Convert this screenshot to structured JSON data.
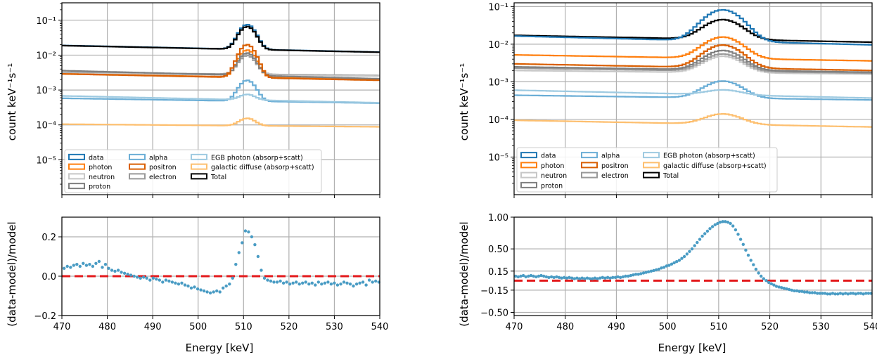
{
  "colors": {
    "data": "#1f77b4",
    "photon": "#ff7f0e",
    "neutron": "#c7c7c7",
    "proton": "#7f7f7f",
    "alpha": "#6baed6",
    "positron": "#d95f02",
    "electron": "#999999",
    "egb": "#9ecae1",
    "galactic": "#fdbf6f",
    "total": "#000000",
    "resid_points": "#4a9cc4",
    "zero_line": "#e31a1c",
    "grid": "#b0b0b0"
  },
  "legend": {
    "items": [
      {
        "key": "data",
        "label": "data"
      },
      {
        "key": "photon",
        "label": "photon"
      },
      {
        "key": "neutron",
        "label": "neutron"
      },
      {
        "key": "proton",
        "label": "proton"
      },
      {
        "key": "alpha",
        "label": "alpha"
      },
      {
        "key": "positron",
        "label": "positron"
      },
      {
        "key": "electron",
        "label": "electron"
      },
      {
        "key": "egb",
        "label": "EGB photon (absorp+scatt)"
      },
      {
        "key": "galactic",
        "label": "galactic diffuse (absorp+scatt)"
      },
      {
        "key": "total",
        "label": "Total"
      }
    ]
  },
  "chart_data": [
    {
      "type": "line",
      "panel": "left-spectrum",
      "ylabel": "count keV⁻¹s⁻¹",
      "yscale": "log",
      "xlim": [
        470,
        540
      ],
      "ylim_exp": [
        -6,
        -0.5
      ],
      "ytick_exps": [
        -5,
        -4,
        -3,
        -2,
        -1
      ],
      "ytick_labels": [
        "10⁻⁵",
        "10⁻⁴",
        "10⁻³",
        "10⁻²",
        "10⁻¹"
      ],
      "line_center_keV": 510.8,
      "line_width_keV": 1.6,
      "series": [
        {
          "key": "galactic",
          "baseline_470": 0.000105,
          "baseline_540": 8.8e-05,
          "peak": 0.000155
        },
        {
          "key": "alpha",
          "baseline_470": 0.00058,
          "baseline_540": 0.00042,
          "peak": 0.0019
        },
        {
          "key": "egb",
          "baseline_470": 0.00068,
          "baseline_540": 0.00043,
          "peak": 0.00075
        },
        {
          "key": "electron",
          "baseline_470": 0.0032,
          "baseline_540": 0.0026,
          "peak": 0.0098
        },
        {
          "key": "neutron",
          "baseline_470": 0.003,
          "baseline_540": 0.0025,
          "peak": 0.011
        },
        {
          "key": "photon",
          "baseline_470": 0.0029,
          "baseline_540": 0.002,
          "peak": 0.014
        },
        {
          "key": "proton",
          "baseline_470": 0.0036,
          "baseline_540": 0.0021,
          "peak": 0.0115
        },
        {
          "key": "positron",
          "baseline_470": 0.0029,
          "baseline_540": 0.0019,
          "peak": 0.02
        },
        {
          "key": "data",
          "baseline_470": 0.019,
          "baseline_540": 0.0122,
          "peak": 0.075
        },
        {
          "key": "total",
          "baseline_470": 0.0188,
          "baseline_540": 0.0121,
          "peak": 0.066
        }
      ]
    },
    {
      "type": "line",
      "panel": "right-spectrum",
      "ylabel": "count keV⁻¹s⁻¹",
      "yscale": "log",
      "xlim": [
        470,
        540
      ],
      "ylim_exp": [
        -6,
        -0.9
      ],
      "ytick_exps": [
        -5,
        -4,
        -3,
        -2,
        -1
      ],
      "ytick_labels": [
        "10⁻⁵",
        "10⁻⁴",
        "10⁻³",
        "10⁻²",
        "10⁻¹"
      ],
      "line_center_keV": 510.8,
      "line_width_keV": 3.2,
      "series": [
        {
          "key": "galactic",
          "baseline_470": 9.5e-05,
          "baseline_540": 6.3e-05,
          "peak": 0.00014
        },
        {
          "key": "alpha",
          "baseline_470": 0.00044,
          "baseline_540": 0.00033,
          "peak": 0.00105
        },
        {
          "key": "egb",
          "baseline_470": 0.0006,
          "baseline_540": 0.00037,
          "peak": 0.00061
        },
        {
          "key": "neutron",
          "baseline_470": 0.002,
          "baseline_540": 0.0016,
          "peak": 0.0048
        },
        {
          "key": "electron",
          "baseline_470": 0.0023,
          "baseline_540": 0.0017,
          "peak": 0.0055
        },
        {
          "key": "proton",
          "baseline_470": 0.0025,
          "baseline_540": 0.0018,
          "peak": 0.0068
        },
        {
          "key": "positron",
          "baseline_470": 0.003,
          "baseline_540": 0.002,
          "peak": 0.0095
        },
        {
          "key": "photon",
          "baseline_470": 0.0052,
          "baseline_540": 0.0036,
          "peak": 0.0155
        },
        {
          "key": "total",
          "baseline_470": 0.0172,
          "baseline_540": 0.0113,
          "peak": 0.045
        },
        {
          "key": "data",
          "baseline_470": 0.0165,
          "baseline_540": 0.0096,
          "peak": 0.082
        }
      ]
    },
    {
      "type": "scatter",
      "panel": "left-residual",
      "xlabel": "Energy [keV]",
      "ylabel": "(data-model)/model",
      "xlim": [
        470,
        540
      ],
      "ylim": [
        -0.2,
        0.3
      ],
      "yticks": [
        -0.2,
        0.0,
        0.2
      ],
      "ytick_labels": [
        "−0.2",
        "0.0",
        "0.2"
      ],
      "xticks": [
        470,
        480,
        490,
        500,
        510,
        520,
        530,
        540
      ],
      "points": [
        [
          470.5,
          0.04
        ],
        [
          471.2,
          0.05
        ],
        [
          471.9,
          0.045
        ],
        [
          472.6,
          0.055
        ],
        [
          473.3,
          0.06
        ],
        [
          474.0,
          0.05
        ],
        [
          474.7,
          0.065
        ],
        [
          475.4,
          0.055
        ],
        [
          476.1,
          0.06
        ],
        [
          476.8,
          0.05
        ],
        [
          477.5,
          0.065
        ],
        [
          478.2,
          0.075
        ],
        [
          478.9,
          0.045
        ],
        [
          479.6,
          0.06
        ],
        [
          480.3,
          0.04
        ],
        [
          481.0,
          0.03
        ],
        [
          481.7,
          0.025
        ],
        [
          482.4,
          0.03
        ],
        [
          483.1,
          0.02
        ],
        [
          483.8,
          0.015
        ],
        [
          484.5,
          0.01
        ],
        [
          485.2,
          0.005
        ],
        [
          485.9,
          0.0
        ],
        [
          486.6,
          -0.005
        ],
        [
          487.3,
          -0.01
        ],
        [
          488.0,
          -0.005
        ],
        [
          488.7,
          -0.01
        ],
        [
          489.4,
          -0.02
        ],
        [
          490.1,
          -0.01
        ],
        [
          490.8,
          -0.015
        ],
        [
          491.5,
          -0.02
        ],
        [
          492.2,
          -0.03
        ],
        [
          492.9,
          -0.02
        ],
        [
          493.6,
          -0.025
        ],
        [
          494.3,
          -0.03
        ],
        [
          495.0,
          -0.035
        ],
        [
          495.7,
          -0.04
        ],
        [
          496.4,
          -0.035
        ],
        [
          497.1,
          -0.045
        ],
        [
          497.8,
          -0.05
        ],
        [
          498.5,
          -0.06
        ],
        [
          499.2,
          -0.055
        ],
        [
          499.9,
          -0.065
        ],
        [
          500.6,
          -0.07
        ],
        [
          501.3,
          -0.075
        ],
        [
          502.0,
          -0.08
        ],
        [
          502.7,
          -0.085
        ],
        [
          503.4,
          -0.08
        ],
        [
          504.1,
          -0.075
        ],
        [
          504.8,
          -0.08
        ],
        [
          505.5,
          -0.06
        ],
        [
          506.2,
          -0.05
        ],
        [
          506.9,
          -0.04
        ],
        [
          507.6,
          -0.01
        ],
        [
          508.3,
          0.06
        ],
        [
          509.0,
          0.12
        ],
        [
          509.7,
          0.17
        ],
        [
          510.4,
          0.23
        ],
        [
          511.1,
          0.225
        ],
        [
          511.8,
          0.2
        ],
        [
          512.5,
          0.16
        ],
        [
          513.2,
          0.1
        ],
        [
          513.9,
          0.03
        ],
        [
          514.6,
          -0.01
        ],
        [
          515.3,
          -0.02
        ],
        [
          516.0,
          -0.025
        ],
        [
          516.7,
          -0.03
        ],
        [
          517.4,
          -0.03
        ],
        [
          518.1,
          -0.025
        ],
        [
          518.8,
          -0.035
        ],
        [
          519.5,
          -0.03
        ],
        [
          520.2,
          -0.04
        ],
        [
          520.9,
          -0.035
        ],
        [
          521.6,
          -0.03
        ],
        [
          522.3,
          -0.04
        ],
        [
          523.0,
          -0.035
        ],
        [
          523.7,
          -0.03
        ],
        [
          524.4,
          -0.04
        ],
        [
          525.1,
          -0.035
        ],
        [
          525.8,
          -0.045
        ],
        [
          526.5,
          -0.03
        ],
        [
          527.2,
          -0.04
        ],
        [
          527.9,
          -0.035
        ],
        [
          528.6,
          -0.03
        ],
        [
          529.3,
          -0.04
        ],
        [
          530.0,
          -0.035
        ],
        [
          530.7,
          -0.045
        ],
        [
          531.4,
          -0.04
        ],
        [
          532.1,
          -0.03
        ],
        [
          532.8,
          -0.035
        ],
        [
          533.5,
          -0.04
        ],
        [
          534.2,
          -0.05
        ],
        [
          534.9,
          -0.04
        ],
        [
          535.6,
          -0.035
        ],
        [
          536.3,
          -0.03
        ],
        [
          537.0,
          -0.045
        ],
        [
          537.7,
          -0.02
        ],
        [
          538.4,
          -0.03
        ],
        [
          539.1,
          -0.025
        ],
        [
          539.8,
          -0.03
        ]
      ]
    },
    {
      "type": "scatter",
      "panel": "right-residual",
      "xlabel": "Energy [keV]",
      "ylabel": "(data-model)/model",
      "xlim": [
        470,
        540
      ],
      "ylim": [
        -0.55,
        1.0
      ],
      "yticks": [
        -0.5,
        -0.15,
        0.15,
        0.5,
        1.0
      ],
      "ytick_labels": [
        "−0.50",
        "−0.15",
        "0.15",
        "0.50",
        "1.00"
      ],
      "xticks": [
        470,
        480,
        490,
        500,
        510,
        520,
        530,
        540
      ],
      "points": [
        [
          470.3,
          0.07
        ],
        [
          470.8,
          0.06
        ],
        [
          471.3,
          0.07
        ],
        [
          471.8,
          0.08
        ],
        [
          472.3,
          0.06
        ],
        [
          472.8,
          0.07
        ],
        [
          473.3,
          0.08
        ],
        [
          473.8,
          0.07
        ],
        [
          474.3,
          0.06
        ],
        [
          474.8,
          0.07
        ],
        [
          475.3,
          0.08
        ],
        [
          475.8,
          0.07
        ],
        [
          476.3,
          0.06
        ],
        [
          476.8,
          0.05
        ],
        [
          477.3,
          0.06
        ],
        [
          477.8,
          0.05
        ],
        [
          478.3,
          0.06
        ],
        [
          478.8,
          0.05
        ],
        [
          479.3,
          0.04
        ],
        [
          479.8,
          0.05
        ],
        [
          480.3,
          0.04
        ],
        [
          480.8,
          0.05
        ],
        [
          481.3,
          0.04
        ],
        [
          481.8,
          0.03
        ],
        [
          482.3,
          0.04
        ],
        [
          482.8,
          0.03
        ],
        [
          483.3,
          0.04
        ],
        [
          483.8,
          0.03
        ],
        [
          484.3,
          0.04
        ],
        [
          484.8,
          0.03
        ],
        [
          485.3,
          0.03
        ],
        [
          485.8,
          0.04
        ],
        [
          486.3,
          0.03
        ],
        [
          486.8,
          0.04
        ],
        [
          487.3,
          0.05
        ],
        [
          487.8,
          0.04
        ],
        [
          488.3,
          0.05
        ],
        [
          488.8,
          0.04
        ],
        [
          489.3,
          0.05
        ],
        [
          489.8,
          0.05
        ],
        [
          490.3,
          0.06
        ],
        [
          490.8,
          0.05
        ],
        [
          491.3,
          0.06
        ],
        [
          491.8,
          0.07
        ],
        [
          492.3,
          0.07
        ],
        [
          492.8,
          0.08
        ],
        [
          493.3,
          0.09
        ],
        [
          493.8,
          0.1
        ],
        [
          494.3,
          0.1
        ],
        [
          494.8,
          0.11
        ],
        [
          495.3,
          0.12
        ],
        [
          495.8,
          0.13
        ],
        [
          496.3,
          0.14
        ],
        [
          496.8,
          0.15
        ],
        [
          497.3,
          0.16
        ],
        [
          497.8,
          0.17
        ],
        [
          498.3,
          0.18
        ],
        [
          498.8,
          0.2
        ],
        [
          499.3,
          0.21
        ],
        [
          499.8,
          0.23
        ],
        [
          500.3,
          0.24
        ],
        [
          500.8,
          0.26
        ],
        [
          501.3,
          0.28
        ],
        [
          501.8,
          0.3
        ],
        [
          502.3,
          0.32
        ],
        [
          502.8,
          0.35
        ],
        [
          503.3,
          0.38
        ],
        [
          503.8,
          0.42
        ],
        [
          504.3,
          0.46
        ],
        [
          504.8,
          0.5
        ],
        [
          505.3,
          0.55
        ],
        [
          505.8,
          0.6
        ],
        [
          506.3,
          0.65
        ],
        [
          506.8,
          0.7
        ],
        [
          507.3,
          0.74
        ],
        [
          507.8,
          0.78
        ],
        [
          508.3,
          0.82
        ],
        [
          508.8,
          0.85
        ],
        [
          509.3,
          0.88
        ],
        [
          509.8,
          0.9
        ],
        [
          510.3,
          0.92
        ],
        [
          510.8,
          0.93
        ],
        [
          511.3,
          0.93
        ],
        [
          511.8,
          0.92
        ],
        [
          512.3,
          0.9
        ],
        [
          512.8,
          0.86
        ],
        [
          513.3,
          0.8
        ],
        [
          513.8,
          0.73
        ],
        [
          514.3,
          0.65
        ],
        [
          514.8,
          0.57
        ],
        [
          515.3,
          0.48
        ],
        [
          515.8,
          0.4
        ],
        [
          516.3,
          0.32
        ],
        [
          516.8,
          0.25
        ],
        [
          517.3,
          0.18
        ],
        [
          517.8,
          0.12
        ],
        [
          518.3,
          0.07
        ],
        [
          518.8,
          0.03
        ],
        [
          519.3,
          0.0
        ],
        [
          519.8,
          -0.03
        ],
        [
          520.3,
          -0.05
        ],
        [
          520.8,
          -0.07
        ],
        [
          521.3,
          -0.09
        ],
        [
          521.8,
          -0.1
        ],
        [
          522.3,
          -0.11
        ],
        [
          522.8,
          -0.12
        ],
        [
          523.3,
          -0.13
        ],
        [
          523.8,
          -0.14
        ],
        [
          524.3,
          -0.15
        ],
        [
          524.8,
          -0.16
        ],
        [
          525.3,
          -0.16
        ],
        [
          525.8,
          -0.17
        ],
        [
          526.3,
          -0.17
        ],
        [
          526.8,
          -0.18
        ],
        [
          527.3,
          -0.18
        ],
        [
          527.8,
          -0.19
        ],
        [
          528.3,
          -0.19
        ],
        [
          528.8,
          -0.19
        ],
        [
          529.3,
          -0.2
        ],
        [
          529.8,
          -0.2
        ],
        [
          530.3,
          -0.2
        ],
        [
          530.8,
          -0.2
        ],
        [
          531.3,
          -0.21
        ],
        [
          531.8,
          -0.21
        ],
        [
          532.3,
          -0.2
        ],
        [
          532.8,
          -0.21
        ],
        [
          533.3,
          -0.21
        ],
        [
          533.8,
          -0.2
        ],
        [
          534.3,
          -0.21
        ],
        [
          534.8,
          -0.2
        ],
        [
          535.3,
          -0.21
        ],
        [
          535.8,
          -0.2
        ],
        [
          536.3,
          -0.2
        ],
        [
          536.8,
          -0.21
        ],
        [
          537.3,
          -0.2
        ],
        [
          537.8,
          -0.2
        ],
        [
          538.3,
          -0.21
        ],
        [
          538.8,
          -0.2
        ],
        [
          539.3,
          -0.2
        ],
        [
          539.8,
          -0.2
        ]
      ]
    }
  ]
}
